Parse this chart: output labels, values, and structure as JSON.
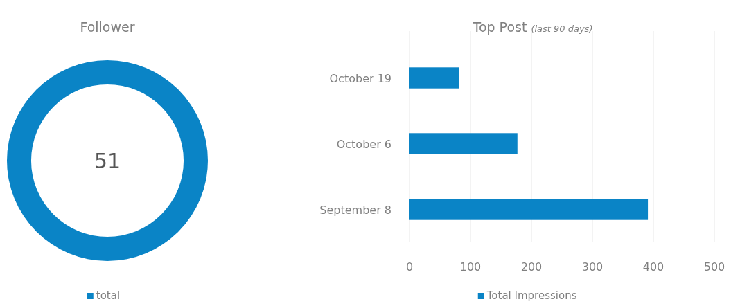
{
  "chart_data": [
    {
      "type": "donut",
      "title": "Follower",
      "categories": [
        "total"
      ],
      "values": [
        51
      ],
      "colors": [
        "#0a84c6"
      ],
      "data_labels": true,
      "legend": "bottom"
    },
    {
      "type": "bar",
      "orientation": "horizontal",
      "title": "Top Post",
      "subtitle": "(last 90 days)",
      "categories": [
        "October 19",
        "October 6",
        "September 8"
      ],
      "series": [
        {
          "name": "Total Impressions",
          "color": "#0a84c6",
          "values": [
            81,
            177,
            391
          ]
        }
      ],
      "xlim": [
        0,
        500
      ],
      "xticks": [
        0,
        100,
        200,
        300,
        400,
        500
      ],
      "grid": "x",
      "legend": "bottom"
    }
  ]
}
